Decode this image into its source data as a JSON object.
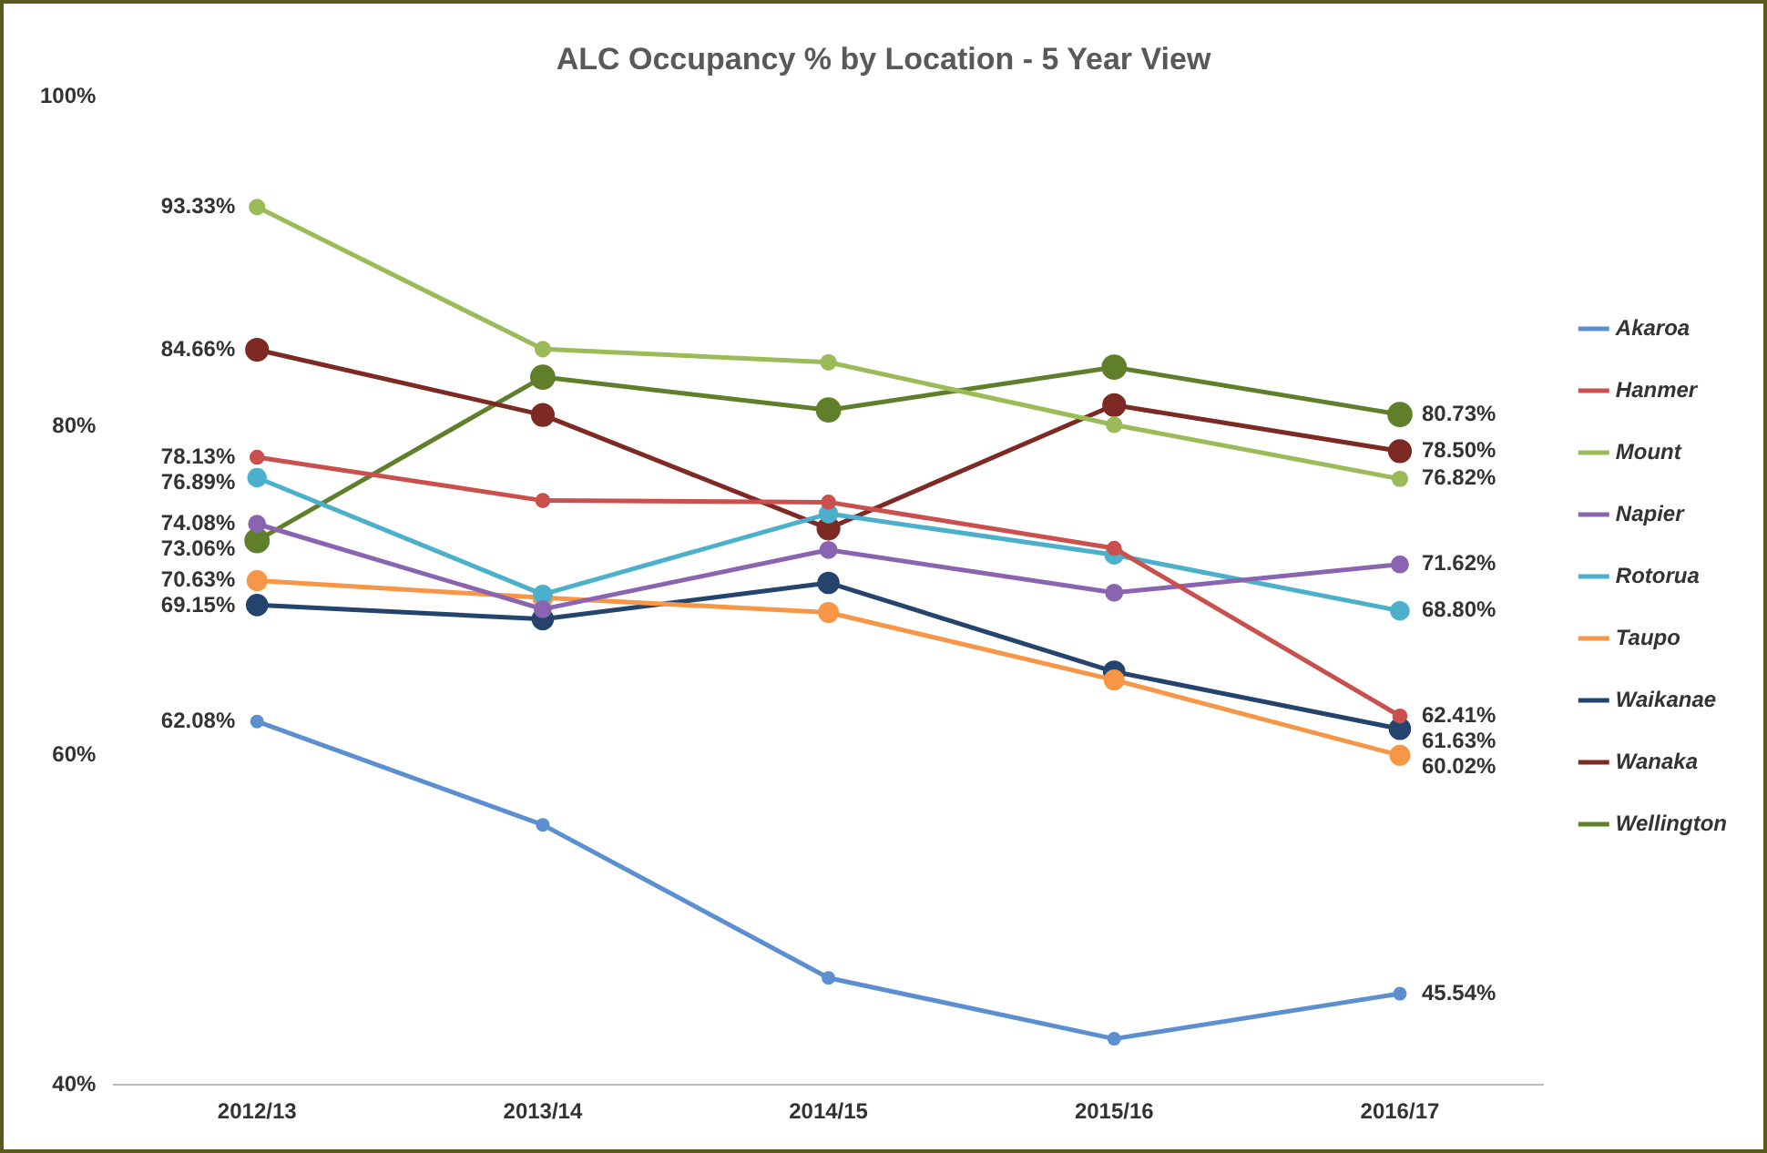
{
  "chart_data": {
    "type": "line",
    "title": "ALC Occupancy % by Location - 5 Year View",
    "categories": [
      "2012/13",
      "2013/14",
      "2014/15",
      "2015/16",
      "2016/17"
    ],
    "ylim": [
      40,
      100
    ],
    "yticks": [
      {
        "value": 40,
        "label": "40%"
      },
      {
        "value": 60,
        "label": "60%"
      },
      {
        "value": 80,
        "label": "80%"
      },
      {
        "value": 100,
        "label": "100%"
      }
    ],
    "grid": false,
    "legend": "right",
    "marker": "circle",
    "line_style": "solid",
    "series": [
      {
        "name": "Akaroa",
        "color": "#5b8fd0",
        "values": [
          62.08,
          55.8,
          46.5,
          42.8,
          45.54
        ],
        "value_labels": [
          "62.08%",
          null,
          null,
          null,
          "45.54%"
        ]
      },
      {
        "name": "Hanmer",
        "color": "#c9504d",
        "values": [
          78.13,
          75.5,
          75.4,
          72.6,
          62.41
        ],
        "value_labels": [
          "78.13%",
          null,
          null,
          null,
          "62.41%"
        ]
      },
      {
        "name": "Mount",
        "color": "#9bbb59",
        "values": [
          93.33,
          84.7,
          83.9,
          80.1,
          76.82
        ],
        "value_labels": [
          "93.33%",
          null,
          null,
          null,
          "76.82%"
        ]
      },
      {
        "name": "Napier",
        "color": "#8a64b0",
        "values": [
          74.08,
          68.9,
          72.5,
          69.9,
          71.62
        ],
        "value_labels": [
          "74.08%",
          null,
          null,
          null,
          "71.62%"
        ]
      },
      {
        "name": "Rotorua",
        "color": "#4bb0cc",
        "values": [
          76.89,
          69.8,
          74.7,
          72.2,
          68.8
        ],
        "value_labels": [
          "76.89%",
          null,
          null,
          null,
          "68.80%"
        ]
      },
      {
        "name": "Taupo",
        "color": "#f79646",
        "values": [
          70.63,
          69.6,
          68.7,
          64.6,
          60.02
        ],
        "value_labels": [
          "70.63%",
          null,
          null,
          null,
          "60.02%"
        ]
      },
      {
        "name": "Waikanae",
        "color": "#24446e",
        "values": [
          69.15,
          68.3,
          70.5,
          65.1,
          61.63
        ],
        "value_labels": [
          "69.15%",
          null,
          null,
          null,
          "61.63%"
        ]
      },
      {
        "name": "Wanaka",
        "color": "#7e2a24",
        "values": [
          84.66,
          80.7,
          73.8,
          81.3,
          78.5
        ],
        "value_labels": [
          "84.66%",
          null,
          null,
          null,
          "78.50%"
        ]
      },
      {
        "name": "Wellington",
        "color": "#5f7f2b",
        "values": [
          73.06,
          83.0,
          81.0,
          83.6,
          80.73
        ],
        "value_labels": [
          "73.06%",
          null,
          null,
          null,
          "80.73%"
        ]
      }
    ]
  }
}
